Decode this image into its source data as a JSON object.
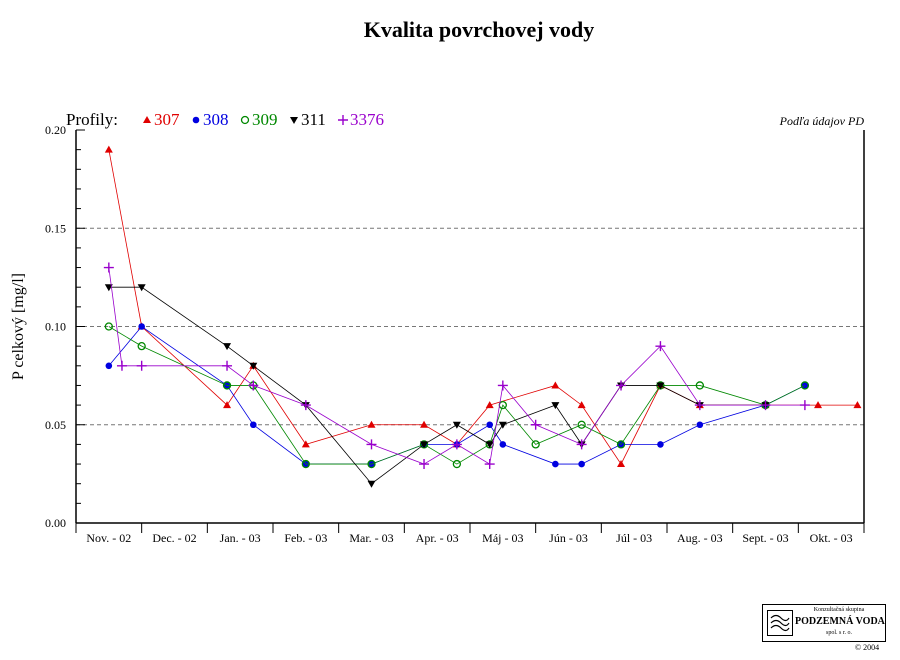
{
  "chart_data": {
    "type": "line",
    "title": "Kvalita povrchovej vody",
    "source_note": "Podľa údajov PD",
    "legend_prefix": "Profily:",
    "ylabel": "P celkový [mg/l]",
    "ylim": [
      0,
      0.2
    ],
    "yticks": [
      "0.00",
      "0.05",
      "0.10",
      "0.15",
      "0.20"
    ],
    "grid": "horizontal dashed at 0.05, 0.10, 0.15",
    "legend_position": "top-left",
    "categories": [
      "Nov. - 02",
      "Dec. - 02",
      "Jan. - 03",
      "Feb. - 03",
      "Mar. - 03",
      "Apr. - 03",
      "Máj - 03",
      "Jún - 03",
      "Júl - 03",
      "Aug. - 03",
      "Sept. - 03",
      "Okt. - 03"
    ],
    "series": [
      {
        "name": "307",
        "color": "#e00000",
        "marker": "triangle-up",
        "x": [
          0.0,
          0.5,
          1.8,
          2.2,
          3.0,
          4.0,
          4.8,
          5.3,
          5.8,
          6.8,
          7.2,
          7.8,
          8.4,
          9.0,
          10.0,
          10.8,
          11.4
        ],
        "y": [
          0.19,
          0.1,
          0.06,
          0.08,
          0.04,
          0.05,
          0.05,
          0.04,
          0.06,
          0.07,
          0.06,
          0.03,
          0.07,
          0.06,
          0.06,
          0.06,
          0.06
        ]
      },
      {
        "name": "308",
        "color": "#0000e0",
        "marker": "circle-filled",
        "x": [
          0.0,
          0.5,
          1.8,
          2.2,
          3.0,
          4.0,
          4.8,
          5.3,
          5.8,
          6.0,
          6.8,
          7.2,
          7.8,
          8.4,
          9.0,
          10.0,
          10.6
        ],
        "y": [
          0.08,
          0.1,
          0.07,
          0.05,
          0.03,
          0.03,
          0.04,
          0.04,
          0.05,
          0.04,
          0.03,
          0.03,
          0.04,
          0.04,
          0.05,
          0.06,
          0.07
        ]
      },
      {
        "name": "309",
        "color": "#008800",
        "marker": "circle-open",
        "x": [
          0.0,
          0.5,
          1.8,
          2.2,
          3.0,
          4.0,
          4.8,
          5.3,
          5.8,
          6.0,
          6.5,
          7.2,
          7.8,
          8.4,
          9.0,
          10.0,
          10.6
        ],
        "y": [
          0.1,
          0.09,
          0.07,
          0.07,
          0.03,
          0.03,
          0.04,
          0.03,
          0.04,
          0.06,
          0.04,
          0.05,
          0.04,
          0.07,
          0.07,
          0.06,
          0.07
        ]
      },
      {
        "name": "311",
        "color": "#000000",
        "marker": "triangle-down",
        "x": [
          0.0,
          0.5,
          1.8,
          2.2,
          3.0,
          4.0,
          4.8,
          5.3,
          5.8,
          6.0,
          6.8,
          7.2,
          7.8,
          8.4,
          9.0,
          10.0
        ],
        "y": [
          0.12,
          0.12,
          0.09,
          0.08,
          0.06,
          0.02,
          0.04,
          0.05,
          0.04,
          0.05,
          0.06,
          0.04,
          0.07,
          0.07,
          0.06,
          0.06
        ]
      },
      {
        "name": "3376",
        "color": "#9900cc",
        "marker": "plus",
        "x": [
          0.0,
          0.2,
          0.5,
          1.8,
          2.2,
          3.0,
          4.0,
          4.8,
          5.3,
          5.8,
          6.0,
          6.5,
          7.2,
          7.8,
          8.4,
          9.0,
          10.0,
          10.6
        ],
        "y": [
          0.13,
          0.08,
          0.08,
          0.08,
          0.07,
          0.06,
          0.04,
          0.03,
          0.04,
          0.03,
          0.07,
          0.05,
          0.04,
          0.07,
          0.09,
          0.06,
          0.06,
          0.06
        ]
      }
    ]
  },
  "logo": {
    "top_text": "Konzultačná skupina",
    "main_text": "PODZEMNÁ VODA",
    "bottom_text": "spol. s r. o."
  },
  "copyright": "© 2004"
}
